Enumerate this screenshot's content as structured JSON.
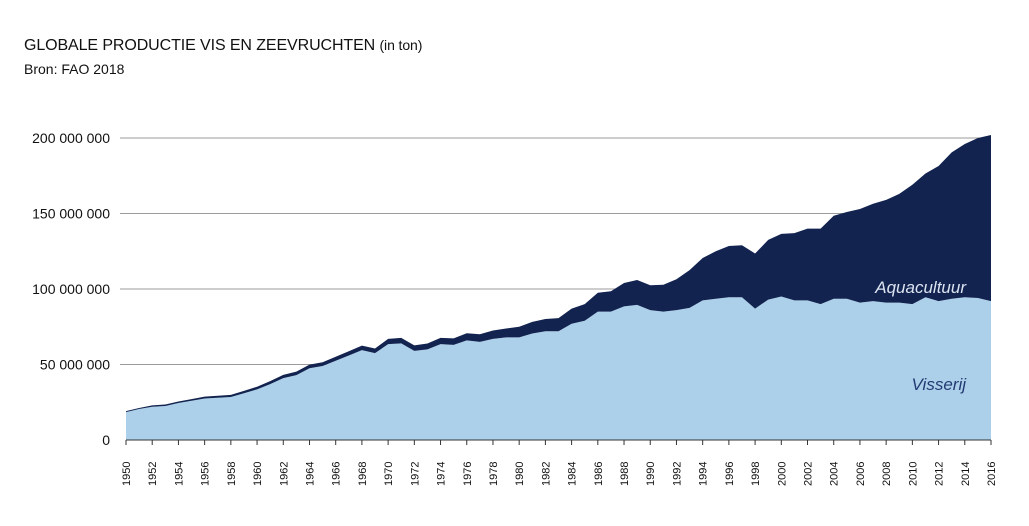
{
  "header": {
    "title": "GLOBALE PRODUCTIE VIS EN ZEEVRUCHTEN",
    "title_unit": "(in ton)",
    "source": "Bron: FAO 2018"
  },
  "chart_data": {
    "type": "area",
    "stacked": true,
    "title": "GLOBALE PRODUCTIE VIS EN ZEEVRUCHTEN (in ton)",
    "subtitle": "Bron: FAO 2018",
    "xlabel": "",
    "ylabel": "",
    "ylim": [
      0,
      200000000
    ],
    "xlim": [
      1950,
      2016
    ],
    "grid": true,
    "yticks": [
      0,
      50000000,
      100000000,
      150000000,
      200000000
    ],
    "ytick_labels": [
      "0",
      "50 000 000",
      "100 000 000",
      "150 000 000",
      "200 000 000"
    ],
    "xtick_labels": [
      "1950",
      "1952",
      "1954",
      "1956",
      "1958",
      "1960",
      "1962",
      "1964",
      "1966",
      "1968",
      "1970",
      "1972",
      "1974",
      "1976",
      "1978",
      "1980",
      "1982",
      "1984",
      "1986",
      "1988",
      "1990",
      "1992",
      "1994",
      "1996",
      "1998",
      "2000",
      "2002",
      "2004",
      "2006",
      "2008",
      "2010",
      "2012",
      "2014",
      "2016"
    ],
    "x": [
      1950,
      1951,
      1952,
      1953,
      1954,
      1955,
      1956,
      1957,
      1958,
      1959,
      1960,
      1961,
      1962,
      1963,
      1964,
      1965,
      1966,
      1967,
      1968,
      1969,
      1970,
      1971,
      1972,
      1973,
      1974,
      1975,
      1976,
      1977,
      1978,
      1979,
      1980,
      1981,
      1982,
      1983,
      1984,
      1985,
      1986,
      1987,
      1988,
      1989,
      1990,
      1991,
      1992,
      1993,
      1994,
      1995,
      1996,
      1997,
      1998,
      1999,
      2000,
      2001,
      2002,
      2003,
      2004,
      2005,
      2006,
      2007,
      2008,
      2009,
      2010,
      2011,
      2012,
      2013,
      2014,
      2015,
      2016
    ],
    "series": [
      {
        "name": "Visserij",
        "color": "#acd0ea",
        "values": [
          18500000,
          20500000,
          22000000,
          22500000,
          24500000,
          26000000,
          27500000,
          28000000,
          28500000,
          31000000,
          33500000,
          37000000,
          41000000,
          43000000,
          47500000,
          49000000,
          52500000,
          56000000,
          59500000,
          57500000,
          63500000,
          64000000,
          59000000,
          60000000,
          63500000,
          63000000,
          66000000,
          65000000,
          67000000,
          68000000,
          68000000,
          70500000,
          72000000,
          72000000,
          77000000,
          79000000,
          85000000,
          85000000,
          88500000,
          89500000,
          86000000,
          85000000,
          86000000,
          87500000,
          92500000,
          93500000,
          94500000,
          94500000,
          87000000,
          93000000,
          95000000,
          92500000,
          92500000,
          90000000,
          93500000,
          93500000,
          91000000,
          92000000,
          91000000,
          91000000,
          90000000,
          94500000,
          92000000,
          93500000,
          94500000,
          94000000,
          92000000
        ]
      },
      {
        "name": "Aquacultuur",
        "color": "#122350",
        "values": [
          600000,
          700000,
          900000,
          1000000,
          1000000,
          1100000,
          1200000,
          1300000,
          1400000,
          1500000,
          1800000,
          2000000,
          2100000,
          2300000,
          2400000,
          2500000,
          2600000,
          2800000,
          3000000,
          3100000,
          3500000,
          3600000,
          3700000,
          3900000,
          4100000,
          4300000,
          4700000,
          5000000,
          5500000,
          5800000,
          7000000,
          7700000,
          8100000,
          8700000,
          10000000,
          11000000,
          12500000,
          13500000,
          15500000,
          16500000,
          16500000,
          17800000,
          20500000,
          25000000,
          28000000,
          31500000,
          34000000,
          34500000,
          36500000,
          39500000,
          41500000,
          44500000,
          47500000,
          50000000,
          55000000,
          57500000,
          62000000,
          64500000,
          68000000,
          72000000,
          79000000,
          82000000,
          89500000,
          97000000,
          101500000,
          106000000,
          110000000
        ]
      }
    ],
    "annotations": [
      "Aquacultuur",
      "Visserij"
    ]
  }
}
